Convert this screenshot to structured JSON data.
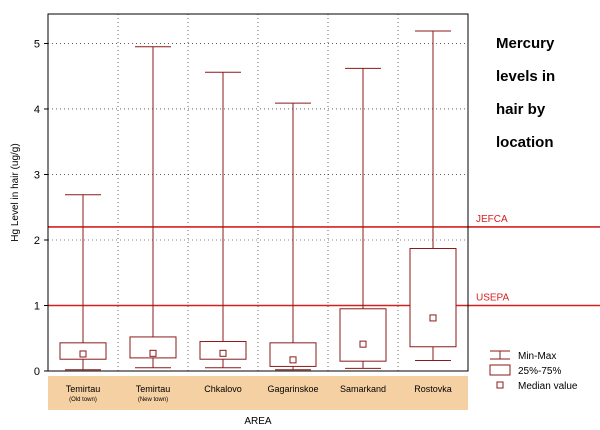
{
  "chart_data": {
    "type": "box",
    "title_lines": [
      "Mercury",
      "levels in",
      "hair by",
      "location"
    ],
    "xlabel": "AREA",
    "ylabel": "Hg Level in hair (ug/g)",
    "ylim": [
      0,
      5.45
    ],
    "yticks": [
      "0",
      "1",
      "2",
      "3",
      "4",
      "5"
    ],
    "categories": [
      {
        "name": "Temirtau",
        "sub": "(Old town)",
        "min": 0.02,
        "q1": 0.18,
        "median": 0.26,
        "q3": 0.43,
        "max": 2.69
      },
      {
        "name": "Temirtau",
        "sub": "(New town)",
        "min": 0.05,
        "q1": 0.2,
        "median": 0.27,
        "q3": 0.52,
        "max": 4.95
      },
      {
        "name": "Chkalovo",
        "sub": "",
        "min": 0.05,
        "q1": 0.18,
        "median": 0.27,
        "q3": 0.45,
        "max": 4.56
      },
      {
        "name": "Gagarinskoe",
        "sub": "",
        "min": 0.02,
        "q1": 0.07,
        "median": 0.17,
        "q3": 0.43,
        "max": 4.09
      },
      {
        "name": "Samarkand",
        "sub": "",
        "min": 0.04,
        "q1": 0.15,
        "median": 0.41,
        "q3": 0.95,
        "max": 4.62
      },
      {
        "name": "Rostovka",
        "sub": "",
        "min": 0.16,
        "q1": 0.37,
        "median": 0.81,
        "q3": 1.87,
        "max": 5.19
      }
    ],
    "reference_lines": [
      {
        "label": "JEFCA",
        "value": 2.2
      },
      {
        "label": "USEPA",
        "value": 1.0
      }
    ],
    "legend": [
      {
        "symbol": "whisker",
        "label": "Min-Max"
      },
      {
        "symbol": "box",
        "label": "25%-75%"
      },
      {
        "symbol": "point",
        "label": "Median value"
      }
    ],
    "colors": {
      "box": "#8b1a1a",
      "reference": "#d42020",
      "category_band": "#f5d0a3",
      "axis": "#000000"
    }
  }
}
